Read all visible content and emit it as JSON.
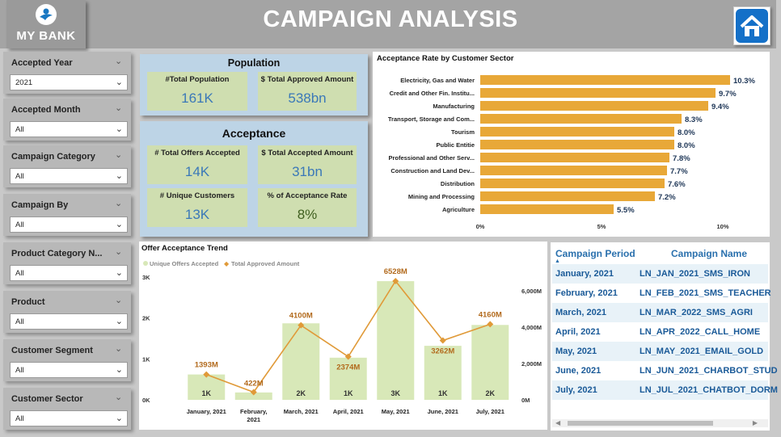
{
  "header": {
    "logo_text": "MY BANK",
    "title": "CAMPAIGN ANALYSIS",
    "home_icon": "home-icon"
  },
  "slicers": [
    {
      "title": "Accepted Year",
      "value": "2021"
    },
    {
      "title": "Accepted Month",
      "value": "All"
    },
    {
      "title": "Campaign Category",
      "value": "All"
    },
    {
      "title": "Campaign By",
      "value": "All"
    },
    {
      "title": "Product Category N...",
      "value": "All"
    },
    {
      "title": "Product",
      "value": "All"
    },
    {
      "title": "Customer Segment",
      "value": "All"
    },
    {
      "title": "Customer Sector",
      "value": "All"
    }
  ],
  "population": {
    "title": "Population",
    "cards": [
      {
        "label": "#Total Population",
        "value": "161K"
      },
      {
        "label": "$ Total Approved Amount",
        "value": "538bn"
      }
    ]
  },
  "acceptance": {
    "title": "Acceptance",
    "cards": [
      {
        "label": "# Total Offers Accepted",
        "value": "14K"
      },
      {
        "label": "$ Total Accepted Amount",
        "value": "31bn"
      },
      {
        "label": "# Unique Customers",
        "value": "13K"
      },
      {
        "label": "% of Acceptance Rate",
        "value": "8%"
      }
    ]
  },
  "sector_chart": {
    "title": "Acceptance Rate by Customer Sector",
    "bar_color": "#e8a838",
    "chart_data": {
      "type": "bar",
      "orientation": "horizontal",
      "categories": [
        "Electricity, Gas and Water",
        "Credit and Other Fin. Institu...",
        "Manufacturing",
        "Transport, Storage and Com...",
        "Tourism",
        "Public Entitie",
        "Professional and Other Serv...",
        "Construction and Land Dev...",
        "Distribution",
        "Mining and Processing",
        "Agriculture"
      ],
      "values": [
        10.3,
        9.7,
        9.4,
        8.3,
        8.0,
        8.0,
        7.8,
        7.7,
        7.6,
        7.2,
        5.5
      ],
      "data_labels": [
        "10.3%",
        "9.7%",
        "9.4%",
        "8.3%",
        "8.0%",
        "8.0%",
        "7.8%",
        "7.7%",
        "7.6%",
        "7.2%",
        "5.5%"
      ],
      "x_ticks": [
        "0%",
        "5%",
        "10%"
      ],
      "xlim": [
        0,
        10.5
      ]
    }
  },
  "trend_chart": {
    "title": "Offer Acceptance Trend",
    "legend": [
      {
        "name": "Unique Offers Accepted",
        "color": "#d8e8b8"
      },
      {
        "name": "Total Approved Amount",
        "color": "#e09a38"
      }
    ],
    "chart_data": {
      "type": "bar",
      "categories": [
        "January, 2021",
        "February, 2021",
        "March, 2021",
        "April, 2021",
        "May, 2021",
        "June, 2021",
        "July, 2021"
      ],
      "category_lines": [
        [
          "January, 2021"
        ],
        [
          "February,",
          "2021"
        ],
        [
          "March, 2021"
        ],
        [
          "April, 2021"
        ],
        [
          "May, 2021"
        ],
        [
          "June, 2021"
        ],
        [
          "July, 2021"
        ]
      ],
      "series": [
        {
          "name": "Unique Offers Accepted",
          "type": "bar",
          "values": [
            620,
            180,
            1870,
            1030,
            2900,
            1320,
            1830
          ],
          "labels": [
            "1K",
            "",
            "2K",
            "1K",
            "3K",
            "1K",
            "2K"
          ]
        },
        {
          "name": "Total Approved Amount",
          "type": "line",
          "values": [
            1393,
            422,
            4100,
            2374,
            6528,
            3262,
            4160
          ],
          "labels": [
            "1393M",
            "422M",
            "4100M",
            "2374M",
            "6528M",
            "3262M",
            "4160M"
          ]
        }
      ],
      "y_left_ticks": [
        "0K",
        "1K",
        "2K",
        "3K"
      ],
      "y_left_lim": [
        0,
        3000
      ],
      "y_right_ticks": [
        "0M",
        "2,000M",
        "4,000M",
        "6,000M"
      ],
      "y_right_lim": [
        0,
        7000
      ]
    }
  },
  "campaign_table": {
    "columns": [
      "Campaign Period",
      "Campaign Name"
    ],
    "rows": [
      [
        "January, 2021",
        "LN_JAN_2021_SMS_IRON"
      ],
      [
        "February, 2021",
        "LN_FEB_2021_SMS_TEACHER"
      ],
      [
        "March, 2021",
        "LN_MAR_2022_SMS_AGRI"
      ],
      [
        "April, 2021",
        "LN_APR_2022_CALL_HOME"
      ],
      [
        "May, 2021",
        "LN_MAY_2021_EMAIL_GOLD"
      ],
      [
        "June, 2021",
        "LN_JUN_2021_CHARBOT_STUD"
      ],
      [
        "July, 2021",
        "LN_JUL_2021_CHATBOT_DORM"
      ]
    ]
  }
}
